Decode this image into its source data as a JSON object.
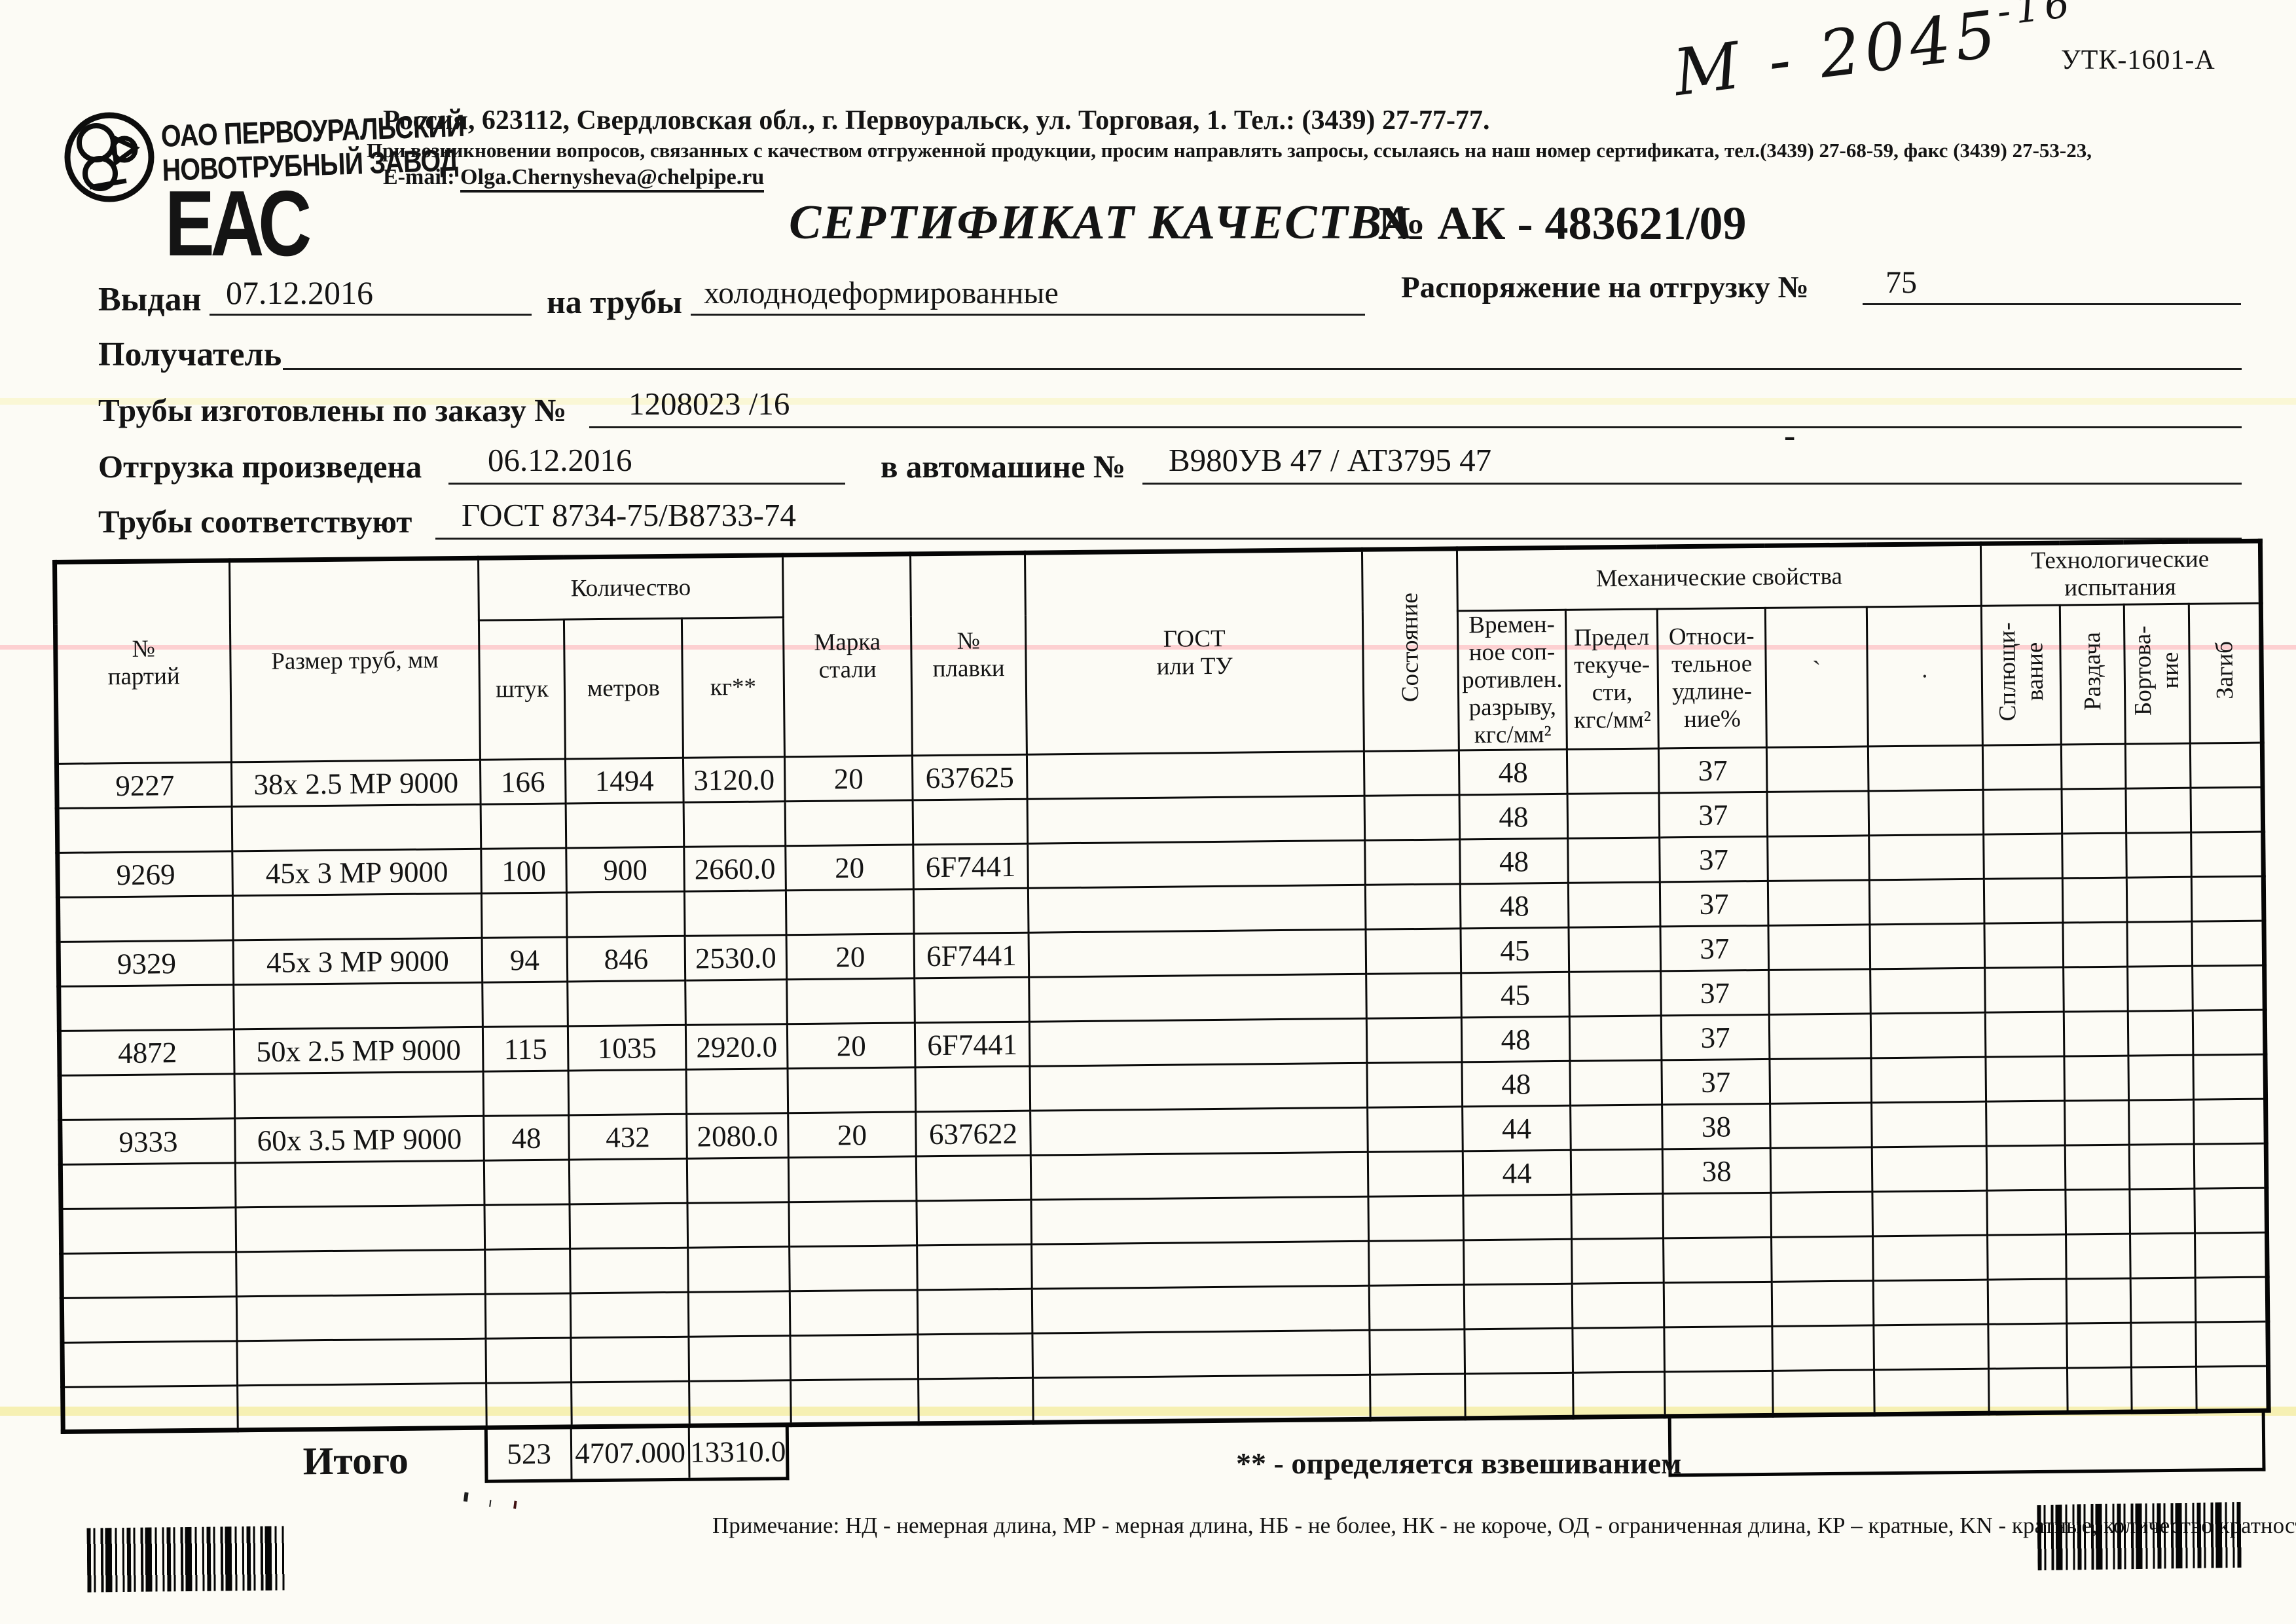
{
  "document": {
    "form_code": "УТК-1601-А",
    "handwritten_mark": {
      "main": "М - 2045",
      "sup": "-16"
    }
  },
  "company": {
    "name_line1": "ОАО ПЕРВОУРАЛЬСКИЙ",
    "name_line2": "НОВОТРУБНЫЙ  ЗАВОД",
    "address": "Россия, 623112, Свердловская обл., г. Первоуральск, ул. Торговая, 1. Тел.: (3439) 27-77-77.",
    "support_note": "При возникновении вопросов, связанных с качеством отгруженной продукции, просим направлять запросы, ссылаясь на наш номер сертификата, тел.(3439) 27-68-59, факс (3439) 27-53-23,",
    "email_label": "E-mail:",
    "email": "Olga.Chernysheva@chelpipe.ru",
    "eac_mark": "ЕАС"
  },
  "title": {
    "text": "СЕРТИФИКАТ КАЧЕСТВА",
    "number": "№  АК - 483621/09"
  },
  "fields": {
    "issued_label": "Выдан",
    "issued_value": "07.12.2016",
    "pipes_label": "на трубы",
    "pipes_value": "холоднодеформированные",
    "order_ship_label": "Распоряжение на отгрузку №",
    "order_ship_value": "75",
    "receiver_label": "Получатель",
    "receiver_value": "",
    "made_by_order_label": "Трубы изготовлены по заказу №",
    "made_by_order_value": "1208023  /16",
    "shipped_label": "Отгрузка произведена",
    "shipped_value": "06.12.2016",
    "truck_label": "в автомашине №",
    "truck_value": "В980УВ 47 / АТ3795 47",
    "truck_note": "-",
    "conform_label": "Трубы соответствуют",
    "conform_value": "ГОСТ 8734-75/В8733-74"
  },
  "table": {
    "headers": {
      "batch": "№\nпартий",
      "size": "Размер труб, мм",
      "qty": "Количество",
      "pcs": "штук",
      "meters": "метров",
      "kg": "кг**",
      "steel": "Марка\nстали",
      "heat": "№\nплавки",
      "gost": "ГОСТ\nили ТУ",
      "state": "Состояние",
      "mech": "Механические свойства",
      "rm": "Времен-\nное соп-\nротивлен.\nразрыву,\nкгс/мм²",
      "yld": "Предел\nтекуче-\nсти,\nкгс/мм²",
      "elong": "Относи-\nтельное\nудлине-\nние%",
      "tech": "Технологические\nиспытания",
      "flatten": "Сплющи-\nвание",
      "expand": "Раздача",
      "flange": "Бортова-\nние",
      "bend": "Загиб"
    },
    "rows": [
      {
        "batch": "9227",
        "size": "38х 2.5 МР 9000",
        "pcs": "166",
        "m": "1494",
        "kg": "3120.0",
        "steel": "20",
        "heat": "637625",
        "rm": "48",
        "el": "37"
      },
      {
        "rm": "48",
        "el": "37"
      },
      {
        "batch": "9269",
        "size": "45х 3 МР 9000",
        "pcs": "100",
        "m": "900",
        "kg": "2660.0",
        "steel": "20",
        "heat": "6F7441",
        "rm": "48",
        "el": "37"
      },
      {
        "rm": "48",
        "el": "37"
      },
      {
        "batch": "9329",
        "size": "45х 3 МР 9000",
        "pcs": "94",
        "m": "846",
        "kg": "2530.0",
        "steel": "20",
        "heat": "6F7441",
        "rm": "45",
        "el": "37"
      },
      {
        "rm": "45",
        "el": "37"
      },
      {
        "batch": "4872",
        "size": "50х 2.5 МР 9000",
        "pcs": "115",
        "m": "1035",
        "kg": "2920.0",
        "steel": "20",
        "heat": "6F7441",
        "rm": "48",
        "el": "37"
      },
      {
        "rm": "48",
        "el": "37"
      },
      {
        "batch": "9333",
        "size": "60х 3.5 МР 9000",
        "pcs": "48",
        "m": "432",
        "kg": "2080.0",
        "steel": "20",
        "heat": "637622",
        "rm": "44",
        "el": "38"
      },
      {
        "rm": "44",
        "el": "38"
      },
      {},
      {},
      {},
      {},
      {}
    ],
    "totals": {
      "label": "Итого",
      "pcs": "523",
      "meters": "4707.000",
      "kg": "13310.0"
    },
    "footnote": "** - определяется взвешиванием",
    "note": "Примечание: НД - немерная длина, МР - мерная длина, НБ - не более, НК - не короче, ОД - ограниченная длина, КР – кратные, KN - кратные, количество кратностей"
  }
}
